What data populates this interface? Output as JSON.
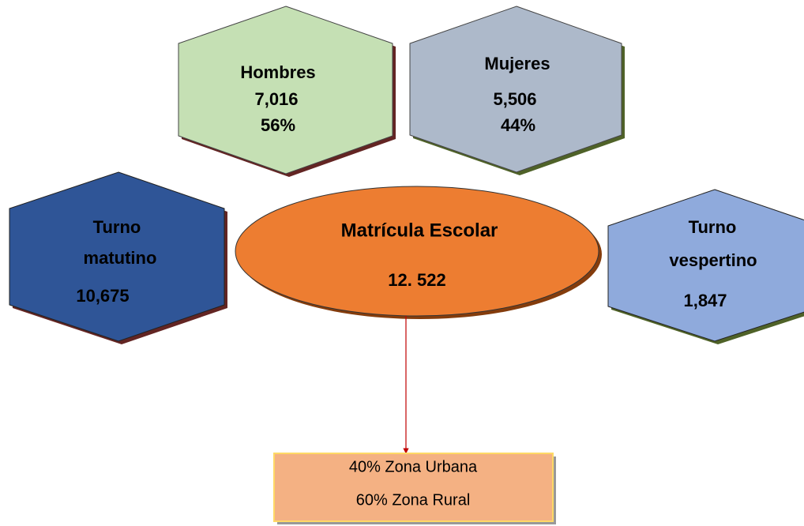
{
  "center": {
    "title": "Matrícula Escolar",
    "value": "12. 522"
  },
  "nodes": [
    {
      "lines": [
        "Hombres",
        "7,016",
        "56%"
      ]
    },
    {
      "lines": [
        "Mujeres",
        "5,506",
        "44%"
      ]
    },
    {
      "lines": [
        "Turno",
        "matutino",
        "10,675"
      ]
    },
    {
      "lines": [
        "Turno",
        "vespertino",
        "1,847"
      ]
    }
  ],
  "box": {
    "lines": [
      "40% Zona Urbana",
      "60% Zona Rural"
    ]
  }
}
